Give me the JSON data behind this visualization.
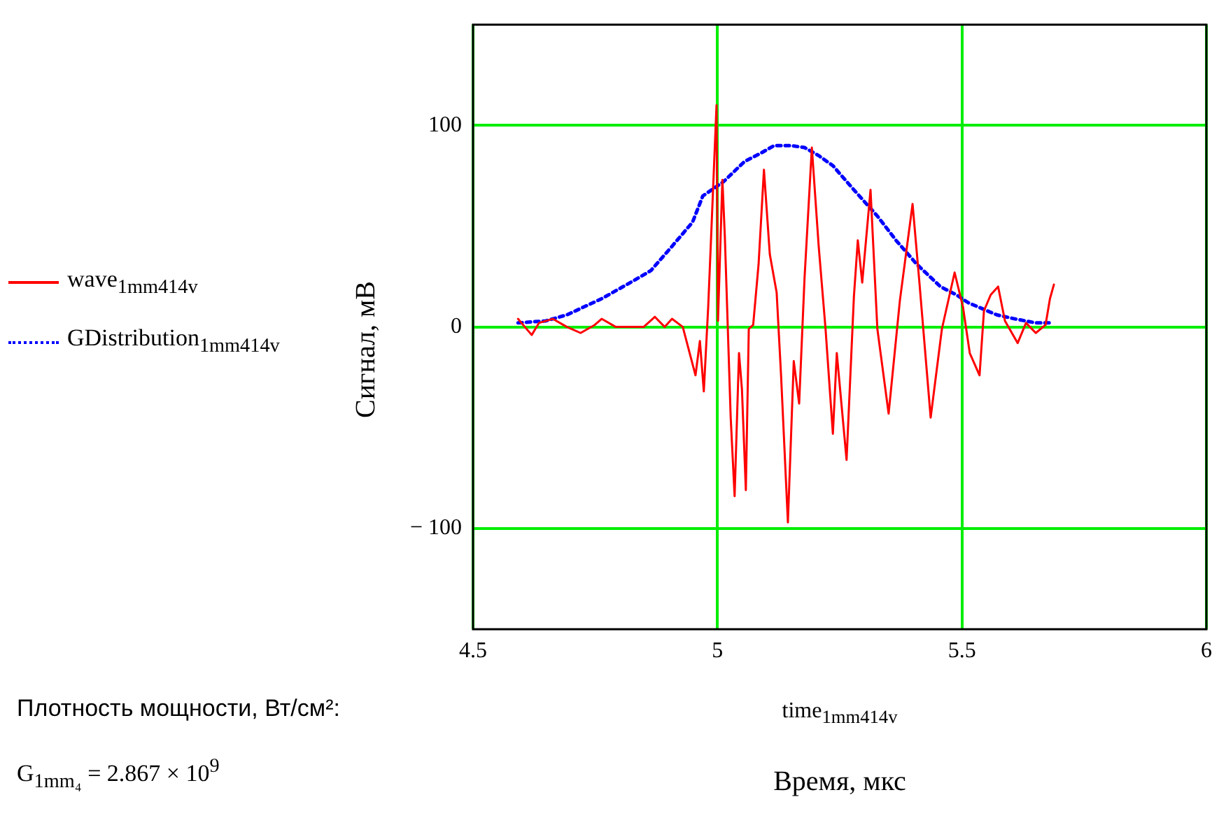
{
  "chart_data": {
    "type": "line",
    "xlabel": "time$_{1mm414v}$",
    "ylabel": "Сигнал, мВ",
    "annotations": [
      "Время, мкс",
      "Плотность мощности, Вт/см²:",
      "G$_{1mm₄}$ = 2.867 × 10$^{9}$"
    ],
    "xlim": [
      4.5,
      6
    ],
    "xticks": [
      4.5,
      5,
      5.5,
      6
    ],
    "ylim": [
      -150,
      150
    ],
    "yticks": [
      {
        "value": -100,
        "label": "− 100"
      },
      0,
      100
    ],
    "grid": true,
    "legend": "left",
    "marker": "none",
    "series": [
      {
        "name": "wave$_{1mm414v}$",
        "color": "#ff0000",
        "line_style": "solid",
        "x": [
          4.592,
          4.606,
          4.62,
          4.635,
          4.663,
          4.692,
          4.72,
          4.749,
          4.763,
          4.792,
          4.849,
          4.872,
          4.892,
          4.907,
          4.929,
          4.955,
          4.964,
          4.972,
          4.981,
          4.987,
          4.998,
          5.001,
          5.01,
          5.015,
          5.027,
          5.035,
          5.044,
          5.05,
          5.058,
          5.064,
          5.073,
          5.084,
          5.095,
          5.107,
          5.121,
          5.13,
          5.144,
          5.156,
          5.167,
          5.178,
          5.193,
          5.207,
          5.221,
          5.236,
          5.244,
          5.264,
          5.279,
          5.287,
          5.296,
          5.313,
          5.327,
          5.35,
          5.373,
          5.399,
          5.413,
          5.436,
          5.459,
          5.485,
          5.502,
          5.516,
          5.536,
          5.545,
          5.559,
          5.574,
          5.588,
          5.614,
          5.631,
          5.651,
          5.671,
          5.68,
          5.688
        ],
        "values": [
          4,
          0,
          -4,
          2,
          4,
          0,
          -3,
          1,
          4,
          0,
          0,
          5,
          0,
          4,
          0,
          -24,
          -7,
          -32,
          10,
          45,
          110,
          3,
          73,
          45,
          -45,
          -84,
          -13,
          -31,
          -81,
          -1,
          1,
          31,
          78,
          36,
          17,
          -24,
          -97,
          -17,
          -38,
          24,
          89,
          40,
          -1,
          -53,
          -13,
          -66,
          15,
          43,
          22,
          68,
          -1,
          -43,
          13,
          61,
          22,
          -45,
          -1,
          27,
          10,
          -13,
          -24,
          8,
          16,
          20,
          3,
          -8,
          2,
          -3,
          1,
          14,
          21
        ]
      },
      {
        "name": "GDistribution$_{1mm414v}$",
        "color": "#0000ff",
        "line_style": "dotted",
        "x": [
          4.592,
          4.649,
          4.692,
          4.763,
          4.829,
          4.864,
          4.907,
          4.949,
          4.97,
          5.012,
          5.055,
          5.087,
          5.116,
          5.15,
          5.178,
          5.207,
          5.236,
          5.279,
          5.327,
          5.365,
          5.408,
          5.456,
          5.488,
          5.513,
          5.542,
          5.571,
          5.608,
          5.651,
          5.68
        ],
        "values": [
          2,
          3,
          6,
          14,
          23,
          28,
          40,
          52,
          65,
          72,
          82,
          86,
          90,
          90,
          89,
          85,
          80,
          68,
          55,
          43,
          31,
          20,
          16,
          12,
          9,
          6,
          4,
          2,
          2
        ]
      }
    ]
  }
}
